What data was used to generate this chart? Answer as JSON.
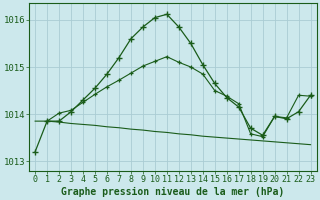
{
  "title": "Graphe pression niveau de la mer (hPa)",
  "bg_color": "#cce8ec",
  "line_color": "#1a5c1a",
  "grid_color": "#aaccd4",
  "ylim": [
    1012.8,
    1016.35
  ],
  "yticks": [
    1013,
    1014,
    1015,
    1016
  ],
  "xlim": [
    -0.5,
    23.5
  ],
  "xticks": [
    0,
    1,
    2,
    3,
    4,
    5,
    6,
    7,
    8,
    9,
    10,
    11,
    12,
    13,
    14,
    15,
    16,
    17,
    18,
    19,
    20,
    21,
    22,
    23
  ],
  "series1_x": [
    0,
    1,
    2,
    3,
    4,
    5,
    6,
    7,
    8,
    9,
    10,
    11,
    12,
    13,
    14,
    15,
    16,
    17,
    18,
    19,
    20,
    21,
    22,
    23
  ],
  "series1_y": [
    1013.2,
    1013.85,
    1013.85,
    1014.05,
    1014.3,
    1014.55,
    1014.85,
    1015.2,
    1015.6,
    1015.85,
    1016.05,
    1016.12,
    1015.85,
    1015.5,
    1015.05,
    1014.65,
    1014.35,
    1014.15,
    1013.7,
    1013.55,
    1013.95,
    1013.9,
    1014.05,
    1014.4
  ],
  "series2_x": [
    0,
    1,
    2,
    3,
    4,
    5,
    6,
    7,
    8,
    9,
    10,
    11,
    12,
    13,
    14,
    15,
    16,
    17,
    18,
    19,
    20,
    21,
    22,
    23
  ],
  "series2_y": [
    1013.85,
    1013.85,
    1013.83,
    1013.8,
    1013.78,
    1013.76,
    1013.73,
    1013.71,
    1013.68,
    1013.66,
    1013.63,
    1013.61,
    1013.58,
    1013.56,
    1013.53,
    1013.51,
    1013.49,
    1013.47,
    1013.45,
    1013.43,
    1013.41,
    1013.39,
    1013.37,
    1013.35
  ],
  "series3_x": [
    1,
    2,
    3,
    4,
    5,
    6,
    7,
    8,
    9,
    10,
    11,
    12,
    13,
    14,
    15,
    16,
    17,
    18,
    19,
    20,
    21,
    22,
    23
  ],
  "series3_y": [
    1013.85,
    1014.02,
    1014.08,
    1014.25,
    1014.42,
    1014.58,
    1014.72,
    1014.87,
    1015.02,
    1015.12,
    1015.22,
    1015.1,
    1015.0,
    1014.85,
    1014.5,
    1014.38,
    1014.22,
    1013.58,
    1013.52,
    1013.95,
    1013.92,
    1014.4,
    1014.38
  ],
  "xlabel_fontsize": 6,
  "ylabel_fontsize": 6.5,
  "title_fontsize": 7.0,
  "tick_label_color": "#1a5c1a"
}
